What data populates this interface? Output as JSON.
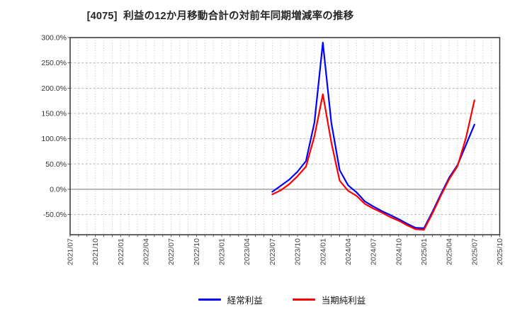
{
  "title": "[4075]  利益の12か月移動合計の対前年同期増減率の推移",
  "legend": {
    "items": [
      {
        "label": "経常利益",
        "color": "#0000ff"
      },
      {
        "label": "当期純利益",
        "color": "#ff0000"
      }
    ]
  },
  "colors": {
    "background": "#ffffff",
    "frame": "#333333",
    "grid_vertical": "#c4c4c4",
    "grid_horizontal": "#b8b8b8",
    "zero_line": "#999999",
    "y_tick_text": "#333333",
    "x_tick_text": "#444444",
    "series_blue": "#0000ff",
    "series_red": "#ff0000"
  },
  "chart_data": {
    "type": "line",
    "title": "[4075]  利益の12か月移動合計の対前年同期増減率の推移",
    "x_axis": {
      "start": "2021/07",
      "end": "2025/10",
      "months_total": 51,
      "tick_step_months": 3,
      "tick_labels": [
        "2021/07",
        "2021/10",
        "2022/01",
        "2022/04",
        "2022/07",
        "2022/10",
        "2023/01",
        "2023/04",
        "2023/07",
        "2023/10",
        "2024/01",
        "2024/04",
        "2024/07",
        "2024/10",
        "2025/01",
        "2025/04",
        "2025/07",
        "2025/10"
      ]
    },
    "y_axis": {
      "unit": "%",
      "min": -89.8,
      "max": 300,
      "tick_values": [
        300,
        250,
        200,
        150,
        100,
        50,
        0,
        -50
      ],
      "tick_labels": [
        "300.0%",
        "250.0%",
        "200.0%",
        "150.0%",
        "100.0%",
        "50.0%",
        "0.0%",
        "-50.0%"
      ],
      "zero_line": true,
      "grid": true
    },
    "months": [
      "2023/07",
      "2023/08",
      "2023/09",
      "2023/10",
      "2023/11",
      "2023/12",
      "2024/01",
      "2024/02",
      "2024/03",
      "2024/04",
      "2024/05",
      "2024/06",
      "2024/07",
      "2024/08",
      "2024/09",
      "2024/10",
      "2024/11",
      "2024/12",
      "2025/01",
      "2025/02",
      "2025/03",
      "2025/04",
      "2025/05",
      "2025/06",
      "2025/07"
    ],
    "series": [
      {
        "name": "経常利益",
        "color": "#0000ff",
        "values": [
          -5,
          7,
          19,
          35,
          56,
          132,
          290,
          132,
          38,
          8,
          -6,
          -24,
          -34,
          -43,
          -51,
          -59,
          -68,
          -76,
          -77,
          -45,
          -10,
          23,
          48,
          88,
          128
        ]
      },
      {
        "name": "当期純利益",
        "color": "#ff0000",
        "values": [
          -10,
          -2,
          10,
          26,
          45,
          105,
          188,
          93,
          17,
          -3,
          -13,
          -29,
          -38,
          -46,
          -55,
          -62,
          -71,
          -79,
          -80,
          -48,
          -13,
          20,
          46,
          102,
          176
        ]
      }
    ],
    "legend_position": "bottom-center"
  }
}
